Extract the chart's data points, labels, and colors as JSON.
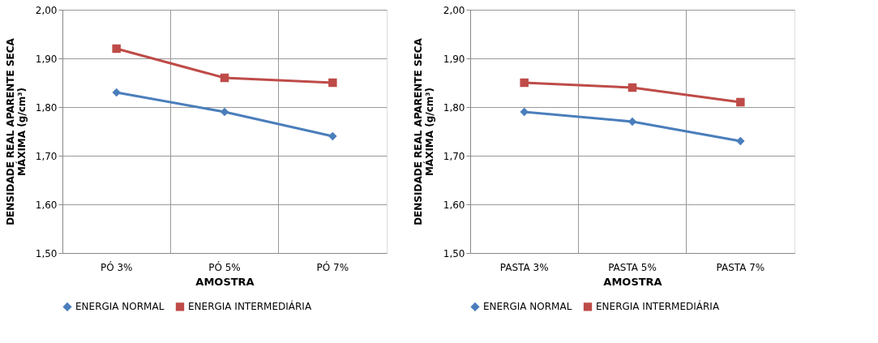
{
  "chart_data": [
    {
      "type": "line",
      "categories": [
        "PÓ 3%",
        "PÓ 5%",
        "PÓ 7%"
      ],
      "xlabel": "AMOSTRA",
      "ylabel": "DENSIDADE REAL APARENTE SECA MÁXIMA (g/cm³)",
      "ylim": [
        1.5,
        2.0
      ],
      "yticks": [
        {
          "value": 1.5,
          "label": "1,50"
        },
        {
          "value": 1.6,
          "label": "1,60"
        },
        {
          "value": 1.7,
          "label": "1,70"
        },
        {
          "value": 1.8,
          "label": "1,80"
        },
        {
          "value": 1.9,
          "label": "1,90"
        },
        {
          "value": 2.0,
          "label": "2,00"
        }
      ],
      "grid": true,
      "legend": "bottom",
      "series": [
        {
          "name": "ENERGIA NORMAL",
          "color": "#4a7ebb",
          "marker": "diamond",
          "values": [
            1.83,
            1.79,
            1.74
          ]
        },
        {
          "name": "ENERGIA INTERMEDIÁRIA",
          "color": "#be4b48",
          "marker": "square",
          "values": [
            1.92,
            1.86,
            1.85
          ]
        }
      ]
    },
    {
      "type": "line",
      "categories": [
        "PASTA 3%",
        "PASTA 5%",
        "PASTA 7%"
      ],
      "xlabel": "AMOSTRA",
      "ylabel": "DENSIDADE REAL APARENTE SECA MÁXIMA (g/cm³)",
      "ylim": [
        1.5,
        2.0
      ],
      "yticks": [
        {
          "value": 1.5,
          "label": "1,50"
        },
        {
          "value": 1.6,
          "label": "1,60"
        },
        {
          "value": 1.7,
          "label": "1,70"
        },
        {
          "value": 1.8,
          "label": "1,80"
        },
        {
          "value": 1.9,
          "label": "1,90"
        },
        {
          "value": 2.0,
          "label": "2,00"
        }
      ],
      "grid": true,
      "legend": "bottom",
      "series": [
        {
          "name": "ENERGIA NORMAL",
          "color": "#4a7ebb",
          "marker": "diamond",
          "values": [
            1.79,
            1.77,
            1.73
          ]
        },
        {
          "name": "ENERGIA INTERMEDIÁRIA",
          "color": "#be4b48",
          "marker": "square",
          "values": [
            1.85,
            1.84,
            1.81
          ]
        }
      ]
    }
  ]
}
